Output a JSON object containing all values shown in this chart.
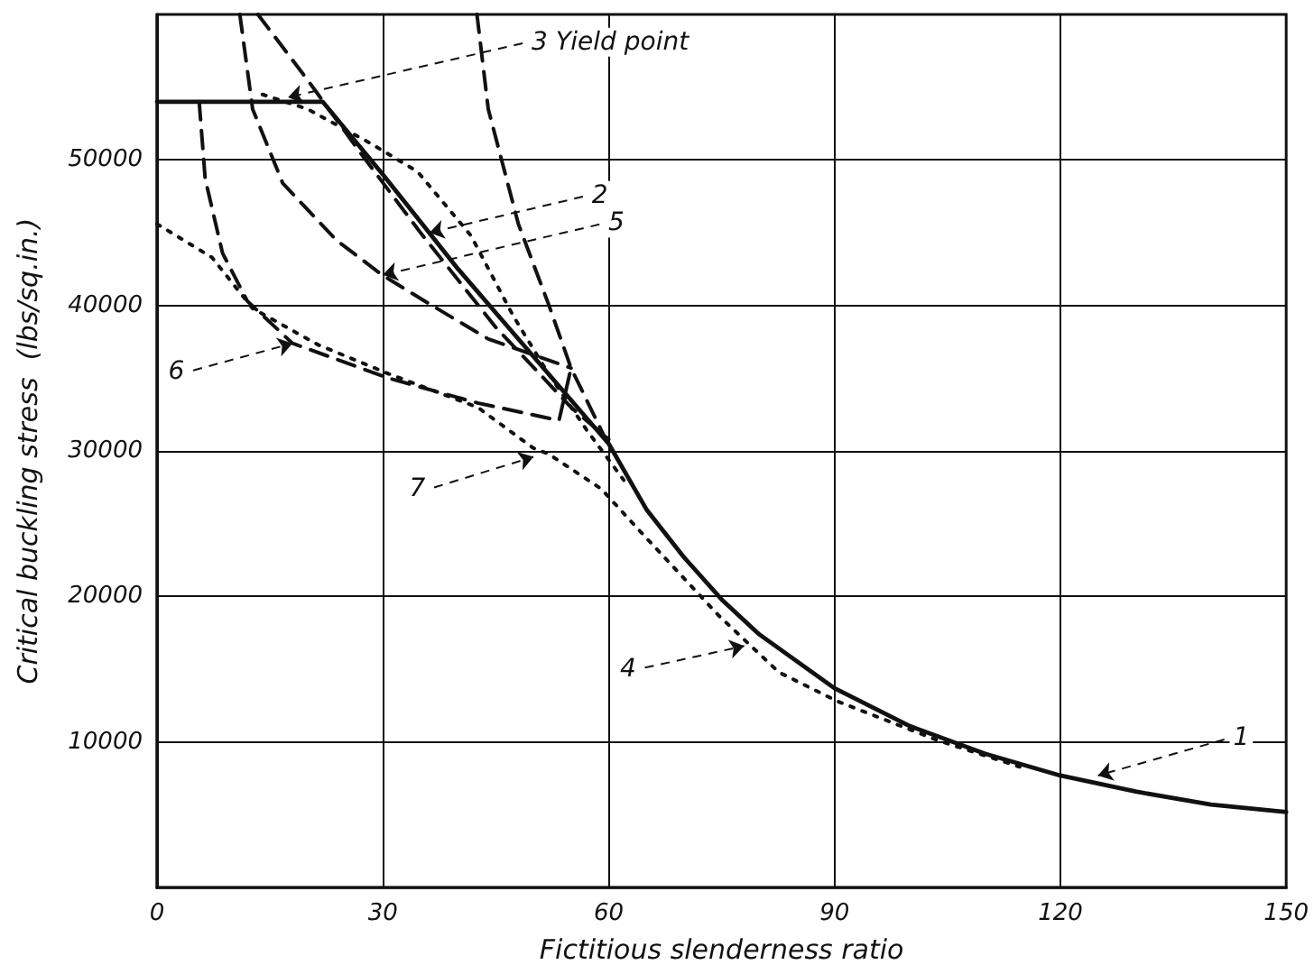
{
  "chart_data": {
    "type": "line",
    "xlabel": "Fictitious slenderness ratio",
    "ylabel": "Critical buckling stress  (lbs/sq.in.)",
    "xlim": [
      0,
      150
    ],
    "xticks": [
      0,
      30,
      60,
      90,
      120,
      150
    ],
    "ylim": [
      0,
      60000
    ],
    "yticks": [
      10000,
      20000,
      30000,
      40000,
      50000
    ],
    "grid": true,
    "marker": "none",
    "series": [
      {
        "color": "#111111",
        "line_style": "solid",
        "x": [
          0,
          22,
          30,
          40,
          50,
          60,
          65,
          70,
          75,
          80,
          90,
          100,
          110,
          120,
          130,
          140,
          150
        ],
        "values": [
          54000,
          54000,
          49000,
          42500,
          36500,
          30500,
          26000,
          22700,
          19800,
          17400,
          13700,
          11100,
          9200,
          7700,
          6600,
          5700,
          5200
        ]
      },
      {
        "color": "#111111",
        "line_style": "dotted",
        "x": [
          14,
          20,
          28.5,
          34.6,
          41.7,
          47.3,
          52,
          57,
          62
        ],
        "values": [
          54500,
          53500,
          51100,
          49200,
          44800,
          39300,
          35300,
          31500,
          28000
        ]
      },
      {
        "color": "#111111",
        "line_style": "dashed",
        "x": [
          42.5,
          44,
          48,
          52,
          55,
          59.8
        ],
        "values": [
          60000,
          53500,
          45600,
          40100,
          35700,
          30600
        ]
      },
      {
        "color": "#111111",
        "line_style": "dashed",
        "x": [
          13.4,
          20,
          27,
          35,
          45,
          55,
          60
        ],
        "values": [
          60000,
          55500,
          50500,
          45000,
          38500,
          33000,
          30800
        ]
      },
      {
        "color": "#111111",
        "line_style": "dashed",
        "x": [
          11,
          12.7,
          16.7,
          23.8,
          29.9,
          36.2,
          44,
          55
        ],
        "values": [
          60000,
          53500,
          48400,
          44500,
          42100,
          40100,
          37700,
          35700
        ]
      },
      {
        "color": "#111111",
        "line_style": "dashed",
        "x": [
          5.6,
          6.4,
          8.7,
          12,
          18,
          30.8,
          42.6,
          53.4,
          55
        ],
        "values": [
          54000,
          48700,
          43600,
          40300,
          37400,
          35000,
          33300,
          32100,
          35700
        ]
      },
      {
        "color": "#111111",
        "line_style": "dotted",
        "x": [
          0,
          7.3,
          12.7,
          21.4,
          30.8,
          42.6,
          50,
          52,
          59,
          64.5,
          74.6,
          82.6,
          90.4,
          103.8,
          114.6
        ],
        "values": [
          45600,
          43300,
          39800,
          37300,
          35300,
          33000,
          30200,
          29800,
          27400,
          24300,
          18700,
          14800,
          12800,
          10100,
          8300
        ]
      }
    ],
    "annotations": [
      {
        "text": "3 Yield point",
        "x": 17.4,
        "y": 54300
      },
      {
        "text": "2",
        "x": 36.2,
        "y": 45000
      },
      {
        "text": "5",
        "x": 30,
        "y": 42100
      },
      {
        "text": "6",
        "x": 18,
        "y": 37400
      },
      {
        "text": "7",
        "x": 50,
        "y": 29600
      },
      {
        "text": "4",
        "x": 78,
        "y": 16600
      },
      {
        "text": "1",
        "x": 125,
        "y": 7700
      }
    ]
  }
}
